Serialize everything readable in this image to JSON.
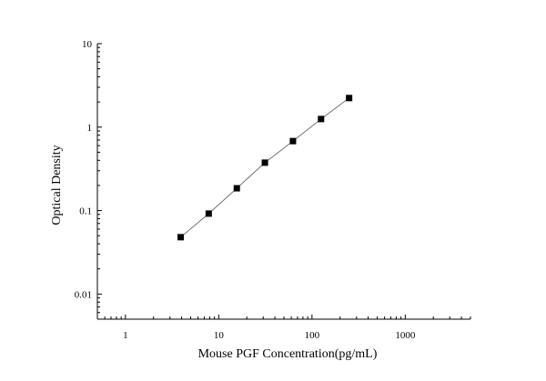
{
  "chart_data": {
    "type": "scatter",
    "xlabel": "Mouse PGF Concentration(pg/mL)",
    "ylabel": "Optical Density",
    "x_scale": "log",
    "y_scale": "log",
    "xlim": [
      0.5,
      5000
    ],
    "ylim": [
      0.005,
      10
    ],
    "x_ticks": [
      {
        "value": 1,
        "label": "1"
      },
      {
        "value": 10,
        "label": "10"
      },
      {
        "value": 100,
        "label": "100"
      },
      {
        "value": 1000,
        "label": "1000"
      }
    ],
    "y_ticks": [
      {
        "value": 0.01,
        "label": "0.01"
      },
      {
        "value": 0.1,
        "label": "0.1"
      },
      {
        "value": 1,
        "label": "1"
      },
      {
        "value": 10,
        "label": "10"
      }
    ],
    "grid": false,
    "legend": "none",
    "series": [
      {
        "marker": "square",
        "color": "#000000",
        "line_color": "#555555",
        "x": [
          3.91,
          7.81,
          15.63,
          31.25,
          62.5,
          125,
          250
        ],
        "y": [
          0.048,
          0.092,
          0.185,
          0.375,
          0.68,
          1.25,
          2.23
        ]
      }
    ]
  }
}
